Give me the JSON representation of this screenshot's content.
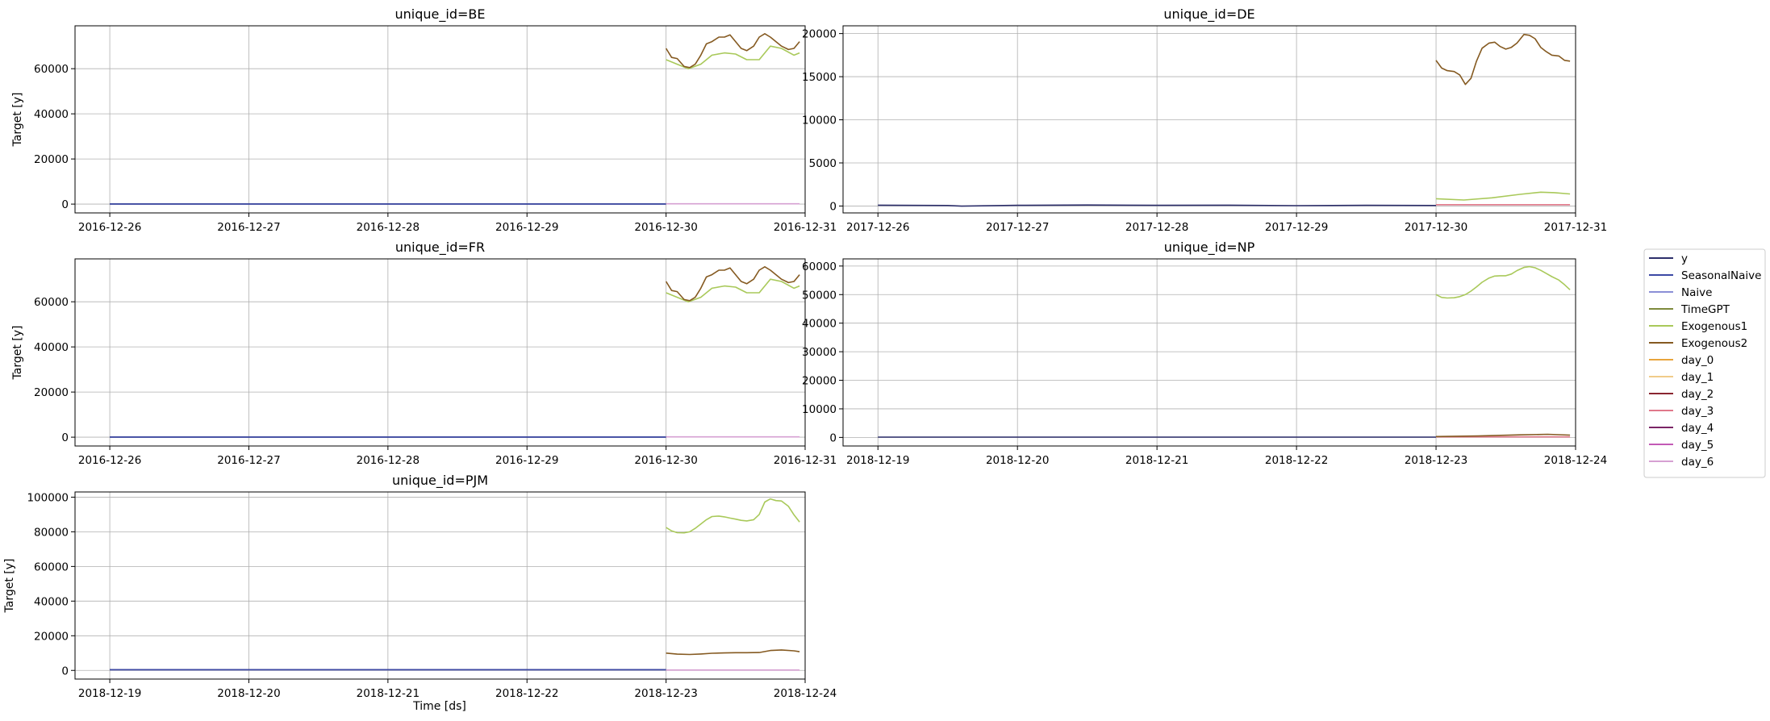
{
  "figure": {
    "xlabel": "Time [ds]"
  },
  "legend": {
    "placement": "right-center",
    "entries": [
      {
        "name": "y",
        "color": "#2d2f6b"
      },
      {
        "name": "SeasonalNaive",
        "color": "#3c49a5"
      },
      {
        "name": "Naive",
        "color": "#8b8fd6"
      },
      {
        "name": "TimeGPT",
        "color": "#7e8a3c"
      },
      {
        "name": "Exogenous1",
        "color": "#a9c95a"
      },
      {
        "name": "Exogenous2",
        "color": "#855a21"
      },
      {
        "name": "day_0",
        "color": "#e8a53c"
      },
      {
        "name": "day_1",
        "color": "#f0cc8a"
      },
      {
        "name": "day_2",
        "color": "#8a2630"
      },
      {
        "name": "day_3",
        "color": "#e0788a"
      },
      {
        "name": "day_4",
        "color": "#7a2566"
      },
      {
        "name": "day_5",
        "color": "#c35ab6"
      },
      {
        "name": "day_6",
        "color": "#d6a0d2"
      }
    ]
  },
  "chart_data": [
    {
      "type": "line",
      "title": "unique_id=BE",
      "xlabel": "",
      "ylabel": "Target [y]",
      "grid": true,
      "xlim": [
        -0.25,
        5.0
      ],
      "ylim": [
        -3900,
        79000
      ],
      "xticks": [
        0,
        1,
        2,
        3,
        4,
        5
      ],
      "xtick_labels": [
        "2016-12-26",
        "2016-12-27",
        "2016-12-28",
        "2016-12-29",
        "2016-12-30",
        "2016-12-31"
      ],
      "yticks": [
        0,
        20000,
        40000,
        60000
      ],
      "yticklabels": [
        "0",
        "20000",
        "40000",
        "60000"
      ],
      "series": [
        {
          "name": "y",
          "x": [
            0,
            4
          ],
          "values": [
            60,
            60
          ]
        },
        {
          "name": "SeasonalNaive",
          "x": [
            0,
            4
          ],
          "values": [
            60,
            60
          ]
        },
        {
          "name": "day_6",
          "x": [
            4,
            4.96
          ],
          "values": [
            150,
            150
          ]
        },
        {
          "name": "Exogenous1",
          "x": [
            4,
            4.08,
            4.16,
            4.25,
            4.33,
            4.42,
            4.5,
            4.58,
            4.67,
            4.75,
            4.83,
            4.92,
            4.96
          ],
          "values": [
            64000,
            62000,
            60000,
            62000,
            66000,
            67000,
            66500,
            64000,
            64000,
            70000,
            69000,
            66000,
            67000
          ]
        },
        {
          "name": "Exogenous2",
          "x": [
            4,
            4.04,
            4.08,
            4.13,
            4.17,
            4.21,
            4.25,
            4.29,
            4.33,
            4.38,
            4.42,
            4.46,
            4.5,
            4.54,
            4.58,
            4.63,
            4.67,
            4.71,
            4.75,
            4.79,
            4.83,
            4.88,
            4.92,
            4.96
          ],
          "values": [
            69000,
            65000,
            64500,
            61000,
            60500,
            62000,
            66000,
            71000,
            72000,
            74000,
            74000,
            75000,
            72000,
            69000,
            68000,
            70000,
            74000,
            75500,
            74000,
            72000,
            70000,
            68500,
            69000,
            72000
          ]
        }
      ]
    },
    {
      "type": "line",
      "title": "unique_id=DE",
      "xlabel": "",
      "ylabel": "",
      "grid": true,
      "xlim": [
        -0.25,
        5.0
      ],
      "ylim": [
        -800,
        20900
      ],
      "xticks": [
        0,
        1,
        2,
        3,
        4,
        5
      ],
      "xtick_labels": [
        "2017-12-26",
        "2017-12-27",
        "2017-12-28",
        "2017-12-29",
        "2017-12-30",
        "2017-12-31"
      ],
      "yticks": [
        0,
        5000,
        10000,
        15000,
        20000
      ],
      "yticklabels": [
        "0",
        "5000",
        "10000",
        "15000",
        "20000"
      ],
      "series": [
        {
          "name": "y",
          "x": [
            0,
            0.5,
            0.6,
            1,
            1.5,
            2,
            2.5,
            3,
            3.5,
            4
          ],
          "values": [
            100,
            60,
            -10,
            80,
            120,
            80,
            100,
            40,
            80,
            60
          ]
        },
        {
          "name": "day_3",
          "x": [
            4,
            4.96
          ],
          "values": [
            150,
            150
          ]
        },
        {
          "name": "Exogenous1",
          "x": [
            4,
            4.2,
            4.4,
            4.6,
            4.75,
            4.85,
            4.96
          ],
          "values": [
            850,
            700,
            950,
            1350,
            1600,
            1550,
            1400
          ]
        },
        {
          "name": "Exogenous2",
          "x": [
            4,
            4.04,
            4.08,
            4.13,
            4.17,
            4.21,
            4.25,
            4.29,
            4.33,
            4.38,
            4.42,
            4.46,
            4.5,
            4.54,
            4.58,
            4.63,
            4.67,
            4.71,
            4.75,
            4.79,
            4.83,
            4.88,
            4.92,
            4.96
          ],
          "values": [
            16900,
            16000,
            15700,
            15600,
            15200,
            14100,
            14800,
            16800,
            18300,
            18900,
            19000,
            18500,
            18200,
            18400,
            18900,
            19900,
            19800,
            19400,
            18400,
            17900,
            17500,
            17400,
            16900,
            16800
          ]
        }
      ]
    },
    {
      "type": "line",
      "title": "unique_id=FR",
      "xlabel": "",
      "ylabel": "Target [y]",
      "grid": true,
      "xlim": [
        -0.25,
        5.0
      ],
      "ylim": [
        -3900,
        79000
      ],
      "xticks": [
        0,
        1,
        2,
        3,
        4,
        5
      ],
      "xtick_labels": [
        "2016-12-26",
        "2016-12-27",
        "2016-12-28",
        "2016-12-29",
        "2016-12-30",
        "2016-12-31"
      ],
      "yticks": [
        0,
        20000,
        40000,
        60000
      ],
      "yticklabels": [
        "0",
        "20000",
        "40000",
        "60000"
      ],
      "series": [
        {
          "name": "y",
          "x": [
            0,
            4
          ],
          "values": [
            60,
            60
          ]
        },
        {
          "name": "SeasonalNaive",
          "x": [
            0,
            4
          ],
          "values": [
            60,
            60
          ]
        },
        {
          "name": "day_6",
          "x": [
            4,
            4.96
          ],
          "values": [
            150,
            150
          ]
        },
        {
          "name": "Exogenous1",
          "x": [
            4,
            4.08,
            4.16,
            4.25,
            4.33,
            4.42,
            4.5,
            4.58,
            4.67,
            4.75,
            4.83,
            4.92,
            4.96
          ],
          "values": [
            64000,
            62000,
            60000,
            62000,
            66000,
            67000,
            66500,
            64000,
            64000,
            70000,
            69000,
            66000,
            67000
          ]
        },
        {
          "name": "Exogenous2",
          "x": [
            4,
            4.04,
            4.08,
            4.13,
            4.17,
            4.21,
            4.25,
            4.29,
            4.33,
            4.38,
            4.42,
            4.46,
            4.5,
            4.54,
            4.58,
            4.63,
            4.67,
            4.71,
            4.75,
            4.79,
            4.83,
            4.88,
            4.92,
            4.96
          ],
          "values": [
            69000,
            65000,
            64500,
            61000,
            60500,
            62000,
            66000,
            71000,
            72000,
            74000,
            74000,
            75000,
            72000,
            69000,
            68000,
            70000,
            74000,
            75500,
            74000,
            72000,
            70000,
            68500,
            69000,
            72000
          ]
        }
      ]
    },
    {
      "type": "line",
      "title": "unique_id=NP",
      "xlabel": "",
      "ylabel": "",
      "grid": true,
      "xlim": [
        -0.25,
        5.0
      ],
      "ylim": [
        -3000,
        62500
      ],
      "xticks": [
        0,
        1,
        2,
        3,
        4,
        5
      ],
      "xtick_labels": [
        "2018-12-19",
        "2018-12-20",
        "2018-12-21",
        "2018-12-22",
        "2018-12-23",
        "2018-12-24"
      ],
      "yticks": [
        0,
        10000,
        20000,
        30000,
        40000,
        50000,
        60000
      ],
      "yticklabels": [
        "0",
        "10000",
        "20000",
        "30000",
        "40000",
        "50000",
        "60000"
      ],
      "series": [
        {
          "name": "y",
          "x": [
            0,
            4
          ],
          "values": [
            100,
            100
          ]
        },
        {
          "name": "day_3",
          "x": [
            4,
            4.96
          ],
          "values": [
            200,
            200
          ]
        },
        {
          "name": "Exogenous2",
          "x": [
            4,
            4.3,
            4.6,
            4.8,
            4.96
          ],
          "values": [
            300,
            500,
            900,
            1100,
            800
          ]
        },
        {
          "name": "Exogenous1",
          "x": [
            4,
            4.04,
            4.08,
            4.13,
            4.17,
            4.21,
            4.25,
            4.29,
            4.33,
            4.38,
            4.42,
            4.46,
            4.5,
            4.54,
            4.58,
            4.63,
            4.67,
            4.71,
            4.75,
            4.79,
            4.83,
            4.88,
            4.92,
            4.96
          ],
          "values": [
            50000,
            49000,
            48800,
            48900,
            49300,
            50000,
            51200,
            52700,
            54300,
            55800,
            56500,
            56600,
            56600,
            57200,
            58400,
            59500,
            59800,
            59400,
            58500,
            57400,
            56300,
            55100,
            53500,
            51700
          ]
        }
      ]
    },
    {
      "type": "line",
      "title": "unique_id=PJM",
      "xlabel": "Time [ds]",
      "ylabel": "Target [y]",
      "grid": true,
      "xlim": [
        -0.25,
        5.0
      ],
      "ylim": [
        -5000,
        103000
      ],
      "xticks": [
        0,
        1,
        2,
        3,
        4,
        5
      ],
      "xtick_labels": [
        "2018-12-19",
        "2018-12-20",
        "2018-12-21",
        "2018-12-22",
        "2018-12-23",
        "2018-12-24"
      ],
      "yticks": [
        0,
        20000,
        40000,
        60000,
        80000,
        100000
      ],
      "yticklabels": [
        "0",
        "20000",
        "40000",
        "60000",
        "80000",
        "100000"
      ],
      "series": [
        {
          "name": "y",
          "x": [
            0,
            4
          ],
          "values": [
            400,
            400
          ]
        },
        {
          "name": "SeasonalNaive",
          "x": [
            0,
            4
          ],
          "values": [
            400,
            400
          ]
        },
        {
          "name": "day_6",
          "x": [
            4,
            4.96
          ],
          "values": [
            200,
            200
          ]
        },
        {
          "name": "Exogenous2",
          "x": [
            4,
            4.08,
            4.17,
            4.25,
            4.33,
            4.42,
            4.5,
            4.58,
            4.67,
            4.75,
            4.83,
            4.92,
            4.96
          ],
          "values": [
            10000,
            9400,
            9200,
            9500,
            9900,
            10100,
            10200,
            10200,
            10300,
            11500,
            11800,
            11300,
            10800
          ]
        },
        {
          "name": "Exogenous1",
          "x": [
            4,
            4.04,
            4.08,
            4.13,
            4.17,
            4.21,
            4.25,
            4.29,
            4.33,
            4.38,
            4.42,
            4.46,
            4.5,
            4.54,
            4.58,
            4.63,
            4.67,
            4.71,
            4.75,
            4.79,
            4.83,
            4.88,
            4.92,
            4.96
          ],
          "values": [
            82500,
            80500,
            79500,
            79400,
            80000,
            82000,
            84500,
            87000,
            88800,
            89100,
            88600,
            87900,
            87300,
            86600,
            86300,
            87000,
            90000,
            97200,
            99000,
            98000,
            97800,
            94700,
            89800,
            85700
          ]
        }
      ]
    }
  ]
}
